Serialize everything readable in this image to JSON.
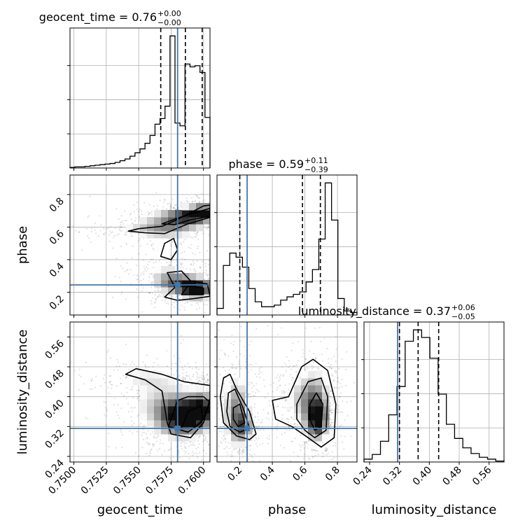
{
  "chart_data": {
    "type": "corner",
    "parameters": [
      "geocent_time",
      "phase",
      "luminosity_distance"
    ],
    "truth_color": "#4477aa",
    "truths": {
      "geocent_time": 0.758,
      "phase": 0.245,
      "luminosity_distance": 0.315
    },
    "panel_titles": [
      {
        "text": "geocent_time = 0.76",
        "sup": "+0.00",
        "sub": "−0.00"
      },
      {
        "text": "phase = 0.59",
        "sup": "+0.11",
        "sub": "−0.39"
      },
      {
        "text": "luminosity_distance = 0.37",
        "sup": "+0.06",
        "sub": "−0.05"
      }
    ],
    "axis_labels": {
      "x": [
        "geocent_time",
        "phase",
        "luminosity_distance"
      ],
      "y": [
        "phase",
        "luminosity_distance"
      ]
    },
    "ranges": {
      "geocent_time": [
        0.7497,
        0.7605
      ],
      "phase": [
        0.06,
        0.92
      ],
      "luminosity_distance": [
        0.225,
        0.6
      ]
    },
    "ticks": {
      "geocent_time": {
        "values": [
          0.75,
          0.7525,
          0.755,
          0.7575,
          0.76
        ],
        "labels": [
          "0.7500",
          "0.7525",
          "0.7550",
          "0.7575",
          "0.7600"
        ]
      },
      "phase": {
        "values": [
          0.2,
          0.4,
          0.6,
          0.8
        ],
        "labels": [
          "0.2",
          "0.4",
          "0.6",
          "0.8"
        ]
      },
      "luminosity_distance": {
        "values": [
          0.24,
          0.32,
          0.4,
          0.48,
          0.56
        ],
        "labels": [
          "0.24",
          "0.32",
          "0.40",
          "0.48",
          "0.56"
        ]
      }
    },
    "histograms": {
      "geocent_time": {
        "x_start": 0.7497,
        "x_end": 0.7605,
        "counts": [
          1,
          2,
          2,
          3,
          4,
          5,
          6,
          7,
          8,
          10,
          13,
          16,
          21,
          27,
          34,
          44,
          58,
          78,
          88,
          110,
          235,
          80,
          75,
          185,
          180,
          182,
          170,
          90
        ],
        "quantile_lines": [
          0.7567,
          0.7586,
          0.7599
        ]
      },
      "phase": {
        "x_start": 0.06,
        "x_end": 0.92,
        "counts": [
          8,
          60,
          75,
          70,
          58,
          32,
          16,
          10,
          10,
          12,
          18,
          22,
          25,
          28,
          40,
          55,
          92,
          160,
          115,
          20,
          5,
          3
        ],
        "quantile_lines": [
          0.2,
          0.585,
          0.695
        ]
      },
      "luminosity_distance": {
        "x_start": 0.225,
        "x_end": 0.6,
        "counts": [
          3,
          8,
          22,
          50,
          80,
          128,
          140,
          132,
          110,
          72,
          40,
          25,
          15,
          9,
          5,
          3,
          1
        ],
        "quantile_lines": [
          0.32,
          0.37,
          0.425
        ]
      }
    },
    "density_2d": [
      {
        "x": "geocent_time",
        "y": "phase",
        "blobs": [
          {
            "cx": 0.7575,
            "cy": 0.62,
            "rx": 0.0018,
            "ry": 0.05,
            "w": 0.7
          },
          {
            "cx": 0.759,
            "cy": 0.67,
            "rx": 0.0012,
            "ry": 0.03,
            "w": 1.0
          },
          {
            "cx": 0.76,
            "cy": 0.7,
            "rx": 0.0007,
            "ry": 0.025,
            "w": 1.1
          },
          {
            "cx": 0.7555,
            "cy": 0.58,
            "rx": 0.002,
            "ry": 0.015,
            "w": 0.35
          },
          {
            "cx": 0.7595,
            "cy": 0.22,
            "rx": 0.0009,
            "ry": 0.04,
            "w": 1.1
          },
          {
            "cx": 0.7583,
            "cy": 0.25,
            "rx": 0.0012,
            "ry": 0.04,
            "w": 0.8
          },
          {
            "cx": 0.7572,
            "cy": 0.3,
            "rx": 0.001,
            "ry": 0.05,
            "w": 0.4
          },
          {
            "cx": 0.7565,
            "cy": 0.47,
            "rx": 0.0015,
            "ry": 0.06,
            "w": 0.25
          }
        ],
        "contours": [
          [
            [
              0.7542,
              0.575
            ],
            [
              0.755,
              0.59
            ],
            [
              0.7568,
              0.605
            ],
            [
              0.7578,
              0.64
            ],
            [
              0.7588,
              0.68
            ],
            [
              0.76,
              0.73
            ],
            [
              0.7605,
              0.735
            ],
            [
              0.7605,
              0.66
            ],
            [
              0.7588,
              0.62
            ],
            [
              0.757,
              0.56
            ],
            [
              0.7555,
              0.565
            ],
            [
              0.7542,
              0.575
            ]
          ],
          [
            [
              0.7568,
              0.62
            ],
            [
              0.758,
              0.655
            ],
            [
              0.7594,
              0.69
            ],
            [
              0.7605,
              0.715
            ],
            [
              0.7605,
              0.665
            ],
            [
              0.759,
              0.645
            ],
            [
              0.7578,
              0.615
            ],
            [
              0.7568,
              0.62
            ]
          ],
          [
            [
              0.757,
              0.17
            ],
            [
              0.7578,
              0.23
            ],
            [
              0.7572,
              0.32
            ],
            [
              0.7583,
              0.33
            ],
            [
              0.759,
              0.27
            ],
            [
              0.7603,
              0.25
            ],
            [
              0.7605,
              0.175
            ],
            [
              0.7592,
              0.16
            ],
            [
              0.758,
              0.15
            ],
            [
              0.757,
              0.17
            ]
          ],
          [
            [
              0.7583,
              0.185
            ],
            [
              0.7588,
              0.24
            ],
            [
              0.76,
              0.225
            ],
            [
              0.76,
              0.185
            ],
            [
              0.7583,
              0.185
            ]
          ],
          [
            [
              0.7567,
              0.42
            ],
            [
              0.757,
              0.5
            ],
            [
              0.7577,
              0.53
            ],
            [
              0.758,
              0.46
            ],
            [
              0.7575,
              0.4
            ],
            [
              0.7567,
              0.42
            ]
          ]
        ]
      },
      {
        "x": "geocent_time",
        "y": "luminosity_distance",
        "blobs": [
          {
            "cx": 0.759,
            "cy": 0.355,
            "rx": 0.001,
            "ry": 0.03,
            "w": 1.0
          },
          {
            "cx": 0.758,
            "cy": 0.34,
            "rx": 0.0012,
            "ry": 0.035,
            "w": 0.8
          },
          {
            "cx": 0.7568,
            "cy": 0.38,
            "rx": 0.0015,
            "ry": 0.04,
            "w": 0.45
          },
          {
            "cx": 0.76,
            "cy": 0.37,
            "rx": 0.0006,
            "ry": 0.03,
            "w": 0.8
          },
          {
            "cx": 0.7555,
            "cy": 0.45,
            "rx": 0.002,
            "ry": 0.02,
            "w": 0.3
          }
        ],
        "contours": [
          [
            [
              0.754,
              0.46
            ],
            [
              0.7555,
              0.445
            ],
            [
              0.7568,
              0.415
            ],
            [
              0.7572,
              0.33
            ],
            [
              0.7575,
              0.3
            ],
            [
              0.759,
              0.29
            ],
            [
              0.76,
              0.33
            ],
            [
              0.7605,
              0.395
            ],
            [
              0.7605,
              0.43
            ],
            [
              0.7585,
              0.44
            ],
            [
              0.7568,
              0.46
            ],
            [
              0.7548,
              0.475
            ],
            [
              0.754,
              0.46
            ]
          ],
          [
            [
              0.7573,
              0.32
            ],
            [
              0.758,
              0.39
            ],
            [
              0.7588,
              0.4
            ],
            [
              0.76,
              0.4
            ],
            [
              0.7605,
              0.385
            ],
            [
              0.7598,
              0.33
            ],
            [
              0.7588,
              0.305
            ],
            [
              0.7573,
              0.32
            ]
          ],
          [
            [
              0.7583,
              0.315
            ],
            [
              0.7588,
              0.36
            ],
            [
              0.7598,
              0.375
            ],
            [
              0.76,
              0.34
            ],
            [
              0.7592,
              0.315
            ],
            [
              0.7583,
              0.315
            ]
          ]
        ]
      },
      {
        "x": "phase",
        "y": "luminosity_distance",
        "blobs": [
          {
            "cx": 0.18,
            "cy": 0.36,
            "rx": 0.05,
            "ry": 0.06,
            "w": 0.8
          },
          {
            "cx": 0.22,
            "cy": 0.32,
            "rx": 0.04,
            "ry": 0.025,
            "w": 0.6
          },
          {
            "cx": 0.66,
            "cy": 0.37,
            "rx": 0.06,
            "ry": 0.06,
            "w": 1.0
          },
          {
            "cx": 0.68,
            "cy": 0.34,
            "rx": 0.03,
            "ry": 0.025,
            "w": 1.0
          },
          {
            "cx": 0.55,
            "cy": 0.4,
            "rx": 0.06,
            "ry": 0.04,
            "w": 0.3
          }
        ],
        "contours": [
          [
            [
              0.1,
              0.45
            ],
            [
              0.14,
              0.46
            ],
            [
              0.18,
              0.42
            ],
            [
              0.26,
              0.36
            ],
            [
              0.3,
              0.3
            ],
            [
              0.26,
              0.285
            ],
            [
              0.18,
              0.295
            ],
            [
              0.1,
              0.33
            ],
            [
              0.08,
              0.4
            ],
            [
              0.1,
              0.45
            ]
          ],
          [
            [
              0.13,
              0.41
            ],
            [
              0.17,
              0.42
            ],
            [
              0.22,
              0.37
            ],
            [
              0.26,
              0.315
            ],
            [
              0.2,
              0.305
            ],
            [
              0.14,
              0.32
            ],
            [
              0.12,
              0.36
            ],
            [
              0.13,
              0.41
            ]
          ],
          [
            [
              0.16,
              0.37
            ],
            [
              0.2,
              0.38
            ],
            [
              0.23,
              0.33
            ],
            [
              0.19,
              0.32
            ],
            [
              0.16,
              0.34
            ],
            [
              0.16,
              0.37
            ]
          ],
          [
            [
              0.4,
              0.39
            ],
            [
              0.5,
              0.4
            ],
            [
              0.58,
              0.48
            ],
            [
              0.65,
              0.5
            ],
            [
              0.74,
              0.47
            ],
            [
              0.79,
              0.38
            ],
            [
              0.78,
              0.29
            ],
            [
              0.7,
              0.265
            ],
            [
              0.62,
              0.29
            ],
            [
              0.52,
              0.32
            ],
            [
              0.42,
              0.34
            ],
            [
              0.4,
              0.39
            ]
          ],
          [
            [
              0.55,
              0.38
            ],
            [
              0.62,
              0.44
            ],
            [
              0.7,
              0.45
            ],
            [
              0.74,
              0.4
            ],
            [
              0.73,
              0.31
            ],
            [
              0.66,
              0.29
            ],
            [
              0.6,
              0.31
            ],
            [
              0.55,
              0.34
            ],
            [
              0.55,
              0.38
            ]
          ],
          [
            [
              0.63,
              0.38
            ],
            [
              0.67,
              0.41
            ],
            [
              0.71,
              0.38
            ],
            [
              0.7,
              0.32
            ],
            [
              0.66,
              0.31
            ],
            [
              0.63,
              0.34
            ],
            [
              0.63,
              0.38
            ]
          ]
        ]
      }
    ]
  }
}
